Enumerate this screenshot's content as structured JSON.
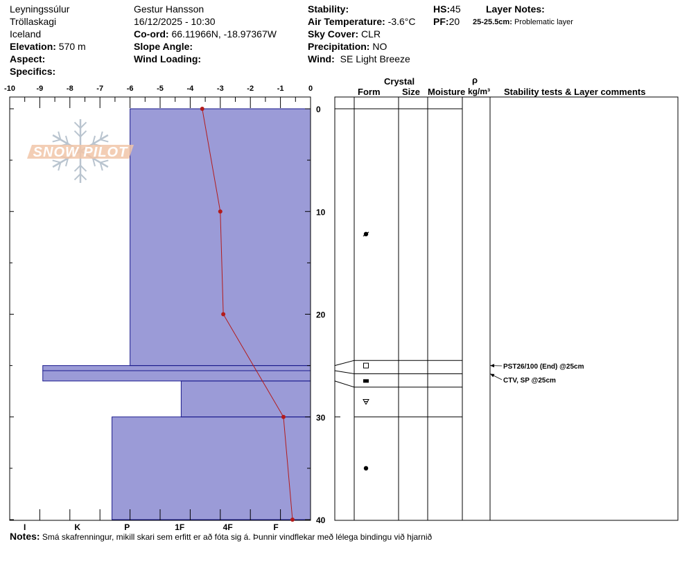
{
  "header": {
    "location": "Leyningssúlur",
    "region": "Tröllaskagi",
    "country": "Iceland",
    "elevation_label": "Elevation:",
    "elevation_value": "570 m",
    "aspect_label": "Aspect:",
    "specifics_label": "Specifics:",
    "observer": "Gestur Hansson",
    "datetime": "16/12/2025 - 10:30",
    "coord_label": "Co-ord:",
    "coord_value": "66.11966N, -18.97367W",
    "slope_label": "Slope Angle:",
    "wind_loading_label": "Wind Loading:",
    "stability_label": "Stability:",
    "air_temp_label": "Air Temperature:",
    "air_temp_value": "-3.6°C",
    "sky_label": "Sky Cover:",
    "sky_value": "CLR",
    "precip_label": "Precipitation:",
    "precip_value": "NO",
    "wind_label": "Wind:",
    "wind_value": "SE Light Breeze",
    "hs_label": "HS:",
    "hs_value": "45",
    "pf_label": "PF:",
    "pf_value": "20",
    "layer_notes_label": "Layer Notes:",
    "layer_note_range": "25-25.5cm:",
    "layer_note_text": "Problematic layer"
  },
  "notes": {
    "label": "Notes:",
    "text": "Smá skafrenningur, mikill skari sem erfitt er að fóta sig á. Þunnir vindflekar með lélega bindingu við hjarnið"
  },
  "logo_text": "SNOW PILOT",
  "table_headers": {
    "crystal": "Crystal",
    "form": "Form",
    "size": "Size",
    "moisture": "Moisture",
    "rho": "ρ",
    "density_unit": "kg/m³",
    "stability": "Stability tests & Layer comments"
  },
  "stability_comments": [
    "PST26/100 (End) @25cm",
    "CTV, SP @25cm"
  ],
  "colors": {
    "hardness_fill": "#9b9bd7",
    "hardness_stroke": "#1a1a8c",
    "temp_line": "#b31b1b"
  },
  "chart_data": {
    "type": "snow-profile",
    "temperature_axis": {
      "ticks": [
        -10,
        -9,
        -8,
        -7,
        -6,
        -5,
        -4,
        -3,
        -2,
        -1,
        0
      ],
      "range": [
        -10,
        0
      ]
    },
    "depth_axis": {
      "ticks": [
        0,
        10,
        20,
        30,
        40
      ],
      "range": [
        0,
        40
      ],
      "direction": "down"
    },
    "hardness_axis": {
      "ticks": [
        "I",
        "K",
        "P",
        "1F",
        "4F",
        "F"
      ]
    },
    "temperature_profile": [
      {
        "depth": 0,
        "temp": -3.6
      },
      {
        "depth": 10,
        "temp": -3.0
      },
      {
        "depth": 20,
        "temp": -2.9
      },
      {
        "depth": 30,
        "temp": -0.9
      },
      {
        "depth": 40,
        "temp": -0.6
      }
    ],
    "hardness_layers": [
      {
        "top": 0,
        "bottom": 25,
        "hardness_temp": -6.0
      },
      {
        "top": 25,
        "bottom": 25.5,
        "hardness_temp": -8.9
      },
      {
        "top": 25.5,
        "bottom": 26.5,
        "hardness_temp": -8.9
      },
      {
        "top": 26.5,
        "bottom": 30,
        "hardness_temp": -4.3
      },
      {
        "top": 30,
        "bottom": 40,
        "hardness_temp": -6.6
      }
    ],
    "grain_symbols": [
      {
        "depth": 12.2,
        "symbol": "rounded-faceted"
      },
      {
        "depth": 25,
        "symbol": "faceted"
      },
      {
        "depth": 26.5,
        "symbol": "melt-freeze-crust"
      },
      {
        "depth": 28.5,
        "symbol": "depth-hoar"
      },
      {
        "depth": 35,
        "symbol": "rounded"
      }
    ],
    "table_layer_lines": [
      0,
      24.5,
      25.8,
      27.1,
      30
    ],
    "comment_depths": [
      25,
      25.8
    ]
  }
}
